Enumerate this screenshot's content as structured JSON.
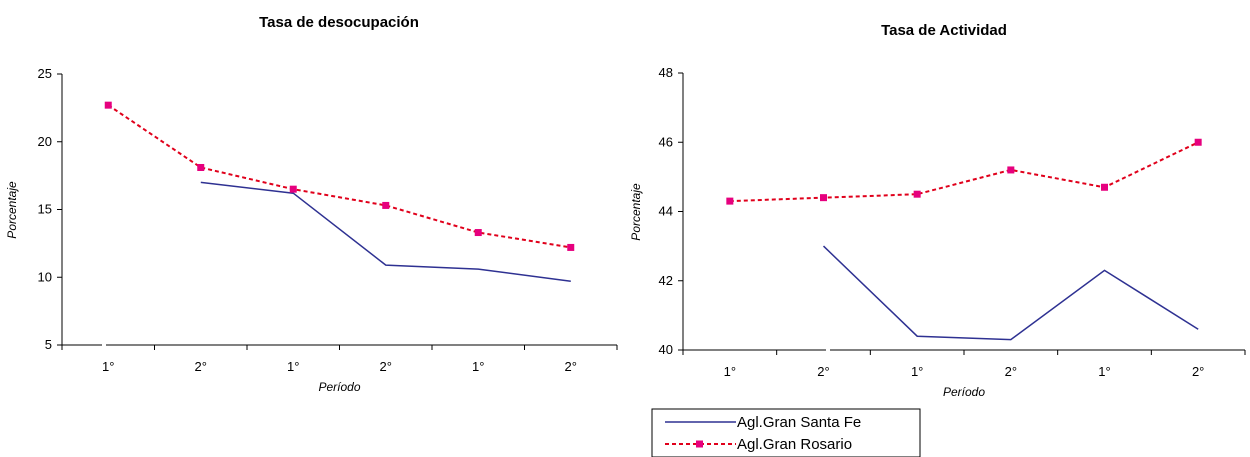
{
  "chart_data": [
    {
      "type": "line",
      "title": "Tasa de desocupación",
      "xlabel": "Período",
      "ylabel": "Porcentaje",
      "categories": [
        "1°",
        "2°",
        "1°",
        "2°",
        "1°",
        "2°"
      ],
      "ylim": [
        5,
        25
      ],
      "yticks": [
        5,
        10,
        15,
        20,
        25
      ],
      "grid": false,
      "series": [
        {
          "name": "Agl.Gran Santa Fe",
          "color": "#2E3192",
          "style": "solid",
          "marker": "none",
          "values": [
            null,
            17.0,
            16.2,
            10.9,
            10.6,
            9.7
          ]
        },
        {
          "name": "Agl.Gran Rosario",
          "color": "#E0001B",
          "style": "dashed",
          "marker": "square",
          "marker_color": "#E6007E",
          "values": [
            22.7,
            18.1,
            16.5,
            15.3,
            13.3,
            12.2
          ]
        }
      ]
    },
    {
      "type": "line",
      "title": "Tasa de Actividad",
      "xlabel": "Período",
      "ylabel": "Porcentaje",
      "categories": [
        "1°",
        "2°",
        "1°",
        "2°",
        "1°",
        "2°"
      ],
      "ylim": [
        40,
        48
      ],
      "yticks": [
        40,
        42,
        44,
        46,
        48
      ],
      "grid": false,
      "legend": "bottom",
      "series": [
        {
          "name": "Agl.Gran Santa Fe",
          "color": "#2E3192",
          "style": "solid",
          "marker": "none",
          "values": [
            null,
            43.0,
            40.4,
            40.3,
            42.3,
            40.6
          ]
        },
        {
          "name": "Agl.Gran Rosario",
          "color": "#E0001B",
          "style": "dashed",
          "marker": "square",
          "marker_color": "#E6007E",
          "values": [
            44.3,
            44.4,
            44.5,
            45.2,
            44.7,
            46.0
          ]
        }
      ]
    }
  ]
}
